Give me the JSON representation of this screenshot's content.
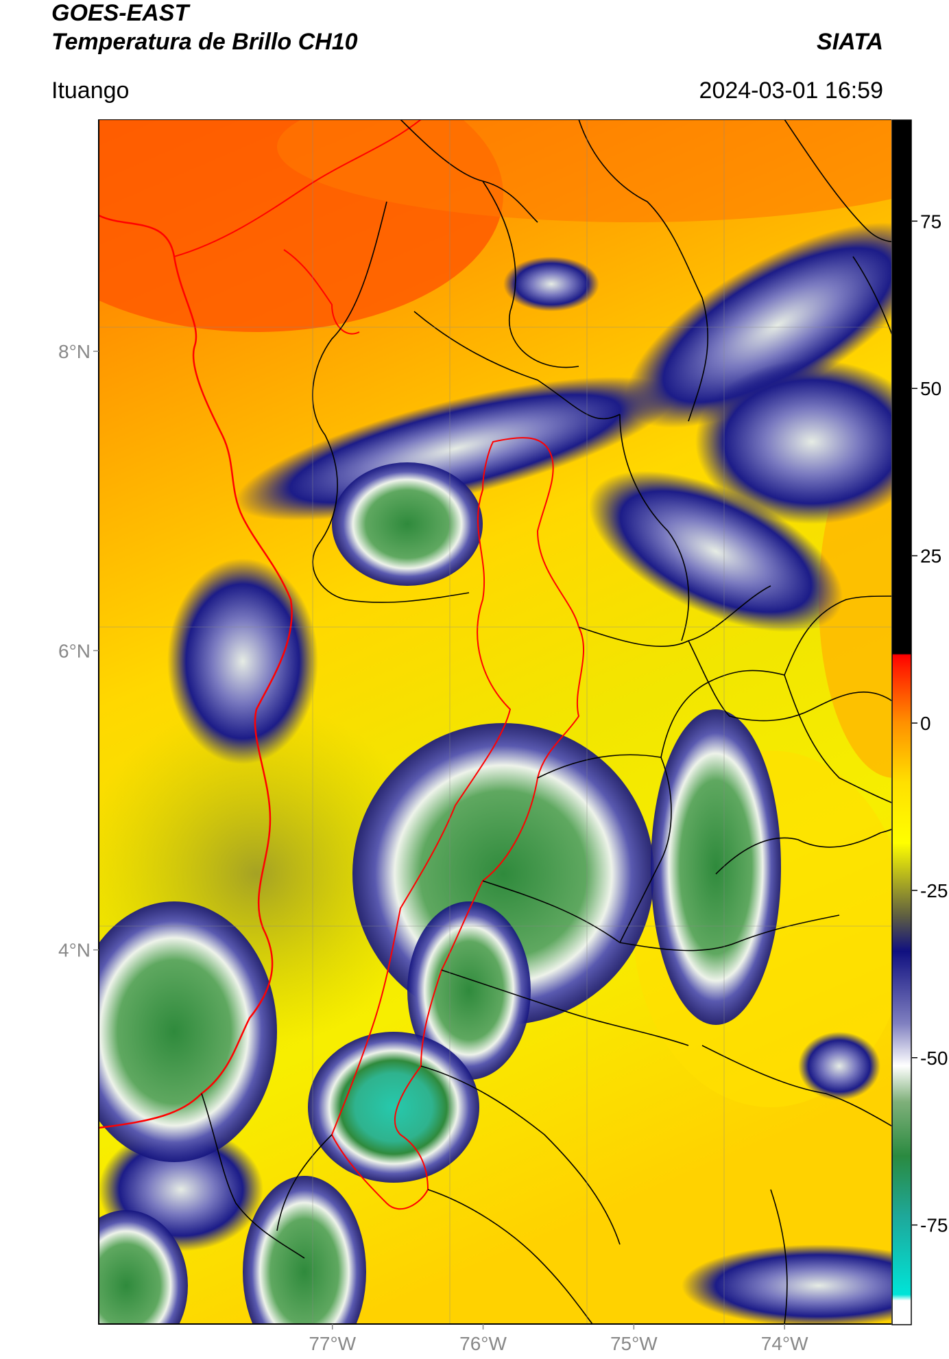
{
  "header": {
    "satellite": "GOES-EAST",
    "product": "Temperatura de Brillo CH10",
    "brand": "SIATA",
    "location": "Ituango",
    "timestamp": "2024-03-01 16:59"
  },
  "map": {
    "lon_range": [
      -78.55,
      -73.0
    ],
    "lat_range": [
      1.5,
      9.55
    ],
    "lon_ticks": [
      {
        "value": -77,
        "label": "77°W"
      },
      {
        "value": -76,
        "label": "76°W"
      },
      {
        "value": -75,
        "label": "75°W"
      },
      {
        "value": -74,
        "label": "74°W"
      }
    ],
    "lat_ticks": [
      {
        "value": 8,
        "label": "8°N"
      },
      {
        "value": 6,
        "label": "6°N"
      },
      {
        "value": 4,
        "label": "4°N"
      }
    ],
    "gridlines": true
  },
  "colorbar": {
    "range": [
      -90,
      90
    ],
    "ticks": [
      75,
      50,
      25,
      0,
      -25,
      -50,
      -75
    ],
    "tick_labels": [
      "75",
      "50",
      "25",
      "0",
      "-25",
      "-50",
      "-75"
    ],
    "palette": [
      "#ffffff",
      "#1ed6c8",
      "#2f8a3c",
      "#e8efe6",
      "#1a1a8a",
      "#ffff00",
      "#ff8c00",
      "#ff2000",
      "#000000"
    ]
  }
}
